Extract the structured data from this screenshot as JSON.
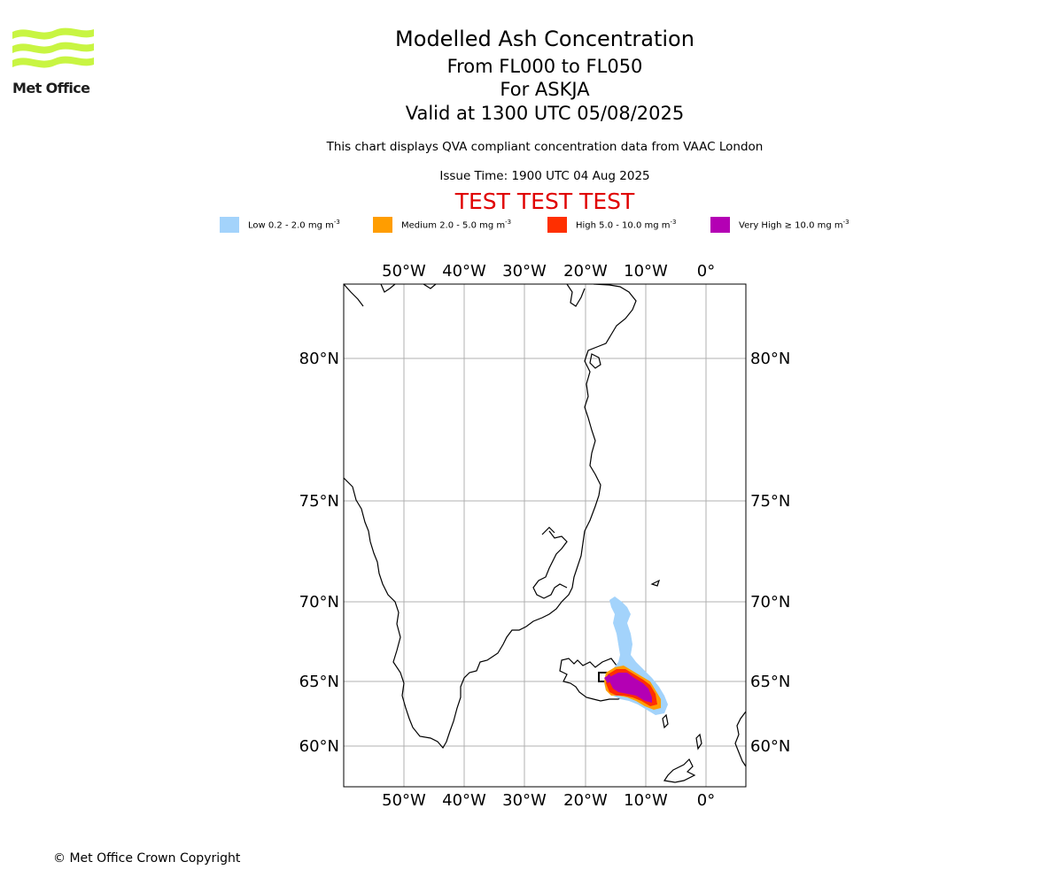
{
  "logo": {
    "text": "Met Office"
  },
  "header": {
    "title": "Modelled Ash Concentration",
    "levels": "From FL000 to FL050",
    "volcano": "For ASKJA",
    "valid_time": "Valid at 1300 UTC 05/08/2025",
    "compliance_note": "This chart displays QVA compliant concentration data from VAAC London",
    "issue_time": "Issue Time: 1900 UTC 04 Aug 2025",
    "test_banner": "TEST TEST TEST",
    "test_banner_color": "#e00000"
  },
  "legend": [
    {
      "name": "Low",
      "range": "0.2 - 2.0 mg m",
      "color": "#a3d3fb"
    },
    {
      "name": "Medium",
      "range": "2.0 - 5.0 mg m",
      "color": "#ff9d00"
    },
    {
      "name": "High",
      "range": "5.0 - 10.0 mg m",
      "color": "#ff2f00"
    },
    {
      "name": "Very High",
      "range": "≥  10.0 mg m",
      "color": "#b400b4"
    }
  ],
  "legend_unit_exponent": "-3",
  "map": {
    "longitude_ticks": [
      "50°W",
      "40°W",
      "30°W",
      "20°W",
      "10°W",
      "0°"
    ],
    "latitude_ticks": [
      "80°N",
      "75°N",
      "70°N",
      "65°N",
      "60°N"
    ],
    "gridlines": true,
    "region": "Greenland, Iceland and the Norwegian Sea",
    "ash_plume_extent": "from Iceland south-east towards the Faroe Islands, with low concentrations extending north"
  },
  "footer": {
    "copyright": "© Met Office Crown Copyright"
  }
}
